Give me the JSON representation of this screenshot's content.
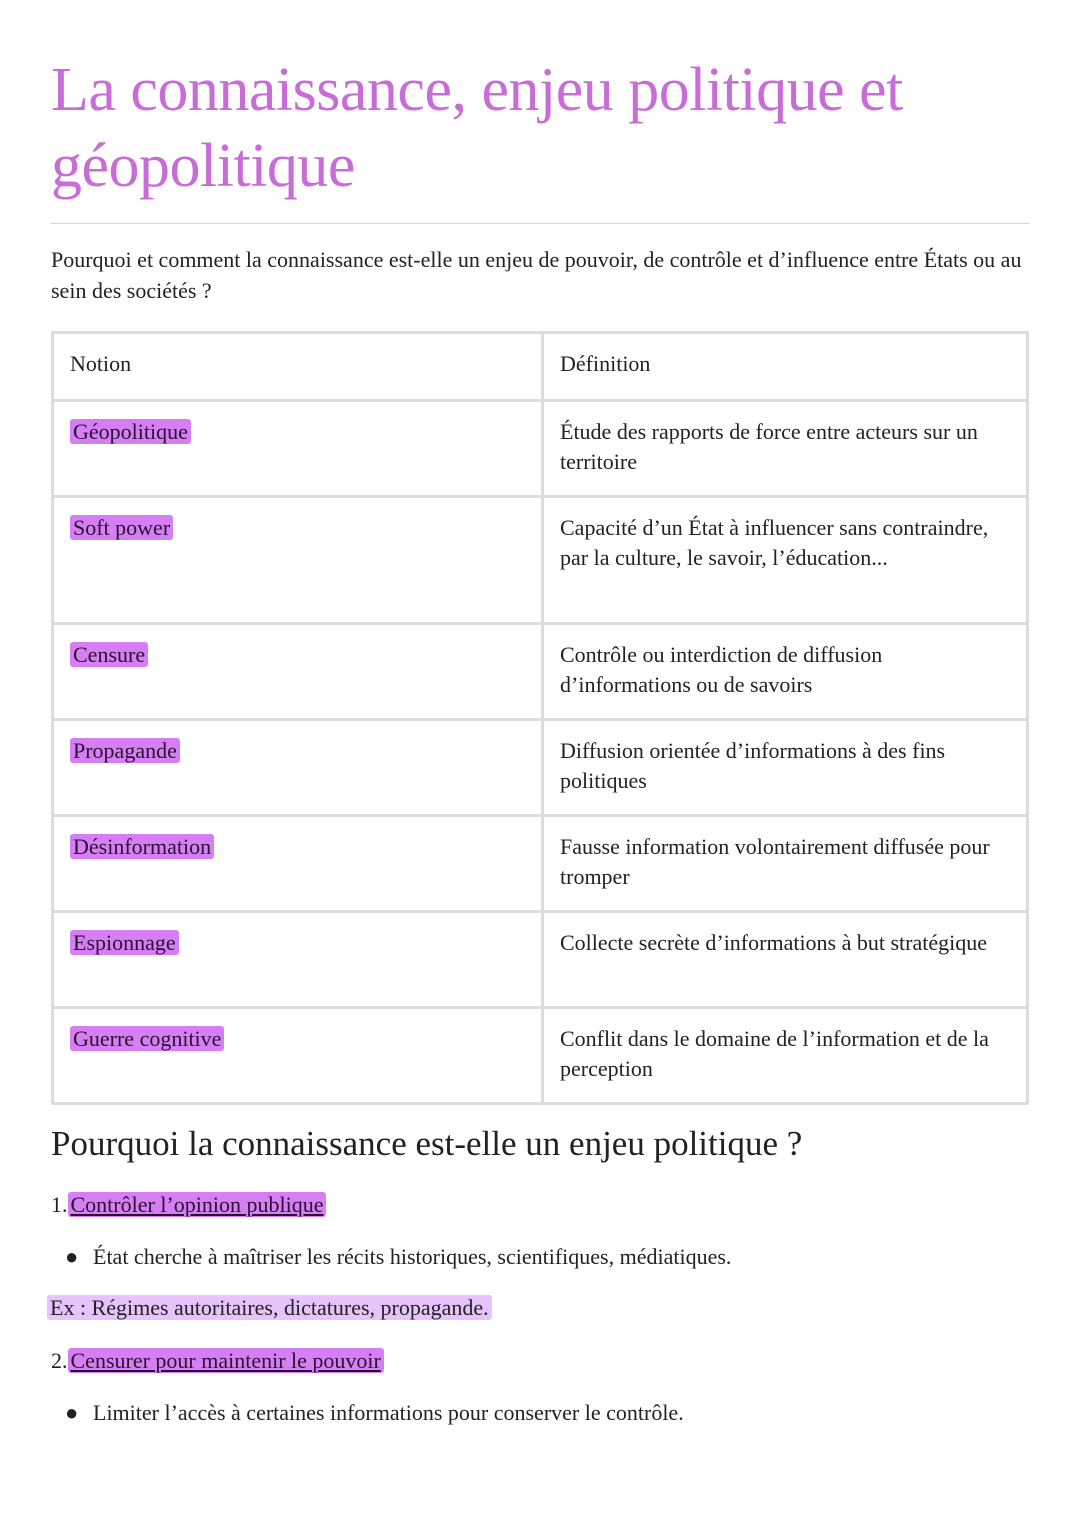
{
  "title": "La connaissance, enjeu politique et géopolitique",
  "intro": "Pourquoi et comment la connaissance est-elle un enjeu de pouvoir, de contrôle et d’influence entre États ou au sein des sociétés ?",
  "table": {
    "headers": [
      "Notion",
      "Définition"
    ],
    "rows": [
      {
        "notion": "Géopolitique",
        "definition": "Étude des rapports de force entre acteurs sur un territoire"
      },
      {
        "notion": "Soft power",
        "definition": "Capacité d’un État à influencer sans contraindre, par la culture, le savoir, l’éducation..."
      },
      {
        "notion": "Censure",
        "definition": "Contrôle ou interdiction de diffusion d’informations ou de savoirs"
      },
      {
        "notion": "Propagande",
        "definition": "Diffusion orientée d’informations à des fins politiques"
      },
      {
        "notion": "Désinformation",
        "definition": "Fausse information volontairement diffusée pour tromper"
      },
      {
        "notion": "Espionnage",
        "definition": "Collecte secrète d’informations à but stratégique"
      },
      {
        "notion": "Guerre cognitive",
        "definition": "Conflit dans le domaine de l’information et de la perception"
      }
    ]
  },
  "section": {
    "heading": "Pourquoi la connaissance est-elle un enjeu politique ?",
    "items": [
      {
        "number": "1.",
        "title": "Contrôler l’opinion publique",
        "bullet": "État cherche à maîtriser les récits historiques, scientifiques, médiatiques.",
        "example": "Ex : Régimes autoritaires, dictatures, propagande."
      },
      {
        "number": "2.",
        "title": "Censurer pour maintenir le pouvoir",
        "bullet": "Limiter l’accès à certaines informations pour conserver le contrôle."
      }
    ]
  },
  "colors": {
    "title": "#c86dd7",
    "highlight": "#d67ff5",
    "highlight_light": "#e6c3fb"
  }
}
